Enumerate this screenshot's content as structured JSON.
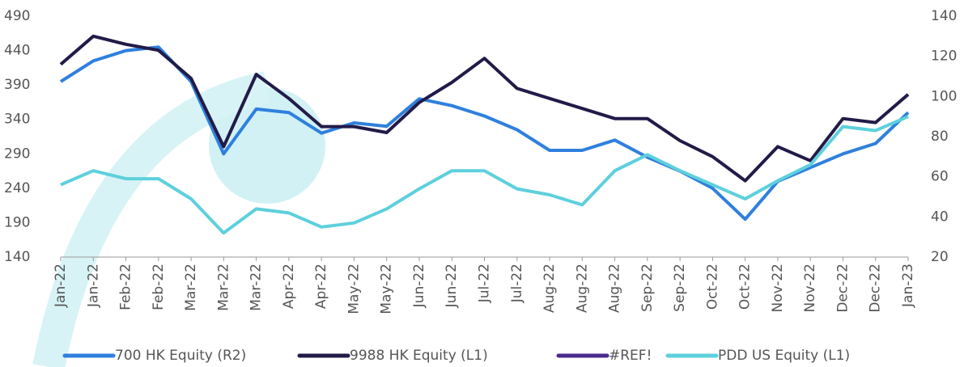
{
  "chart_data": {
    "type": "line",
    "categories": [
      "Jan-22",
      "Jan-22",
      "Feb-22",
      "Feb-22",
      "Mar-22",
      "Mar-22",
      "Mar-22",
      "Apr-22",
      "Apr-22",
      "May-22",
      "May-22",
      "Jun-22",
      "Jun-22",
      "Jul-22",
      "Jul-22",
      "Aug-22",
      "Aug-22",
      "Aug-22",
      "Sep-22",
      "Sep-22",
      "Oct-22",
      "Oct-22",
      "Nov-22",
      "Nov-22",
      "Dec-22",
      "Dec-22",
      "Jan-23"
    ],
    "series": [
      {
        "name": "700 HK Equity  (R2)",
        "color": "#2f80dd",
        "axis": "y",
        "values": [
          395,
          425,
          440,
          445,
          395,
          290,
          355,
          350,
          320,
          335,
          330,
          370,
          360,
          345,
          325,
          295,
          295,
          310,
          285,
          265,
          240,
          195,
          250,
          270,
          290,
          305,
          350
        ]
      },
      {
        "name": "9988 HK Equity  (L1)",
        "color": "#221b48",
        "axis": "y2",
        "values": [
          116,
          130,
          126,
          123,
          109,
          75,
          111,
          99,
          85,
          85,
          82,
          97,
          107,
          119,
          104,
          99,
          94,
          89,
          89,
          78,
          70,
          58,
          75,
          68,
          89,
          87,
          101
        ]
      },
      {
        "name": "#REF!",
        "color": "#4b2a8e",
        "axis": "y2",
        "values": [
          null,
          null,
          null,
          null,
          null,
          null,
          null,
          null,
          null,
          null,
          null,
          null,
          null,
          null,
          null,
          null,
          null,
          null,
          null,
          null,
          null,
          null,
          null,
          null,
          null,
          null,
          null
        ]
      },
      {
        "name": "PDD US Equity  (L1)",
        "color": "#5dd0dc",
        "axis": "y2",
        "values": [
          56,
          63,
          59,
          59,
          49,
          32,
          44,
          42,
          35,
          37,
          44,
          54,
          63,
          63,
          54,
          51,
          46,
          63,
          71,
          63,
          56,
          49,
          58,
          66,
          85,
          83,
          90
        ]
      }
    ],
    "ylim": [
      140,
      490
    ],
    "yticks": [
      140,
      190,
      240,
      290,
      340,
      390,
      440,
      490
    ],
    "y2lim": [
      20,
      140
    ],
    "y2ticks": [
      20,
      40,
      60,
      80,
      100,
      120,
      140
    ],
    "grid": false
  }
}
